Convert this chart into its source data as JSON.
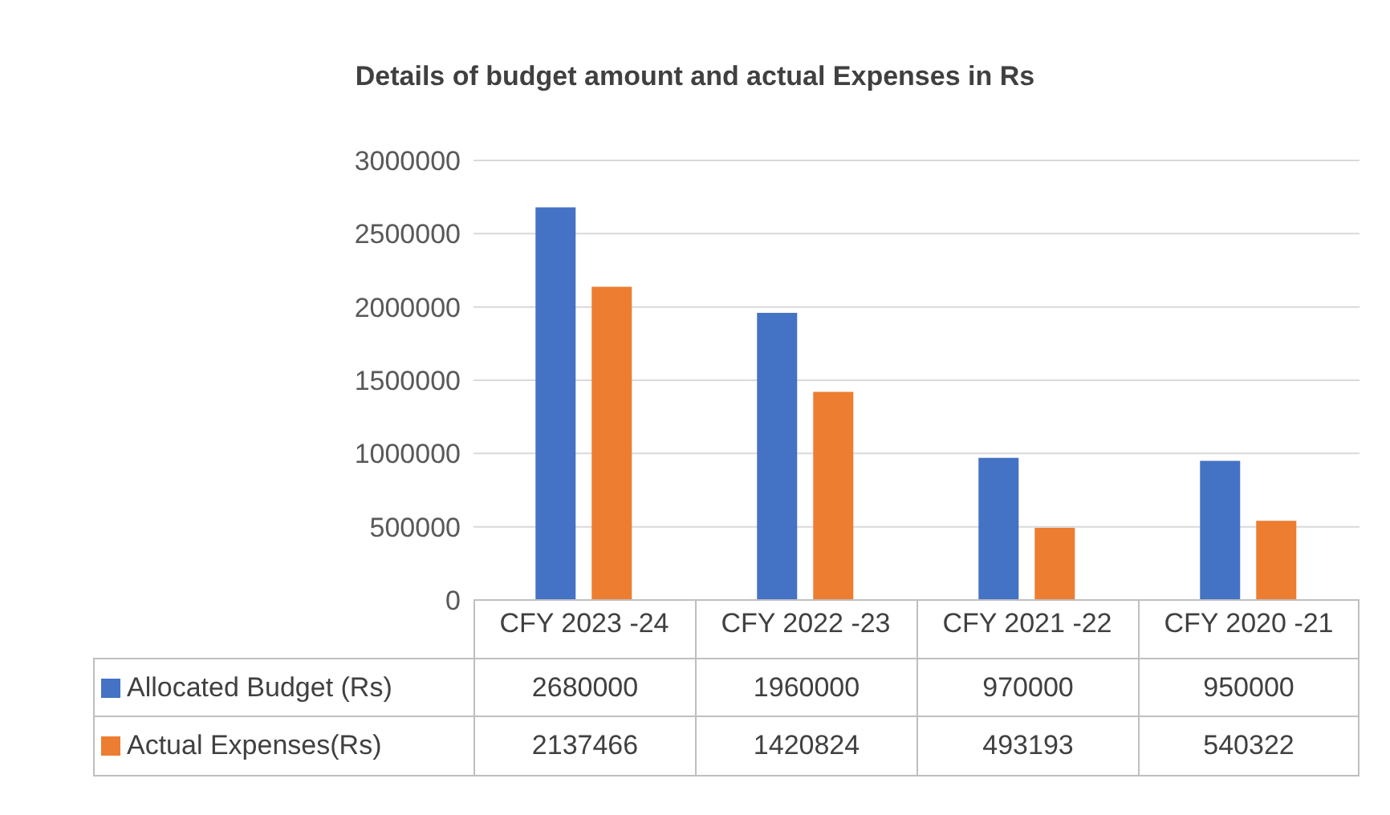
{
  "chart_data": {
    "type": "bar",
    "title": "Details of budget amount and actual Expenses in Rs",
    "categories": [
      "CFY 2023 -24",
      "CFY 2022 -23",
      "CFY 2021 -22",
      "CFY 2020 -21"
    ],
    "series": [
      {
        "name": "Allocated Budget (Rs)",
        "color": "#4472c4",
        "values": [
          2680000,
          1960000,
          970000,
          950000
        ]
      },
      {
        "name": "Actual Expenses(Rs)",
        "color": "#ed7d31",
        "values": [
          2137466,
          1420824,
          493193,
          540322
        ]
      }
    ],
    "ylim": [
      0,
      3000000
    ],
    "yticks": [
      0,
      500000,
      1000000,
      1500000,
      2000000,
      2500000,
      3000000
    ],
    "grid": "y",
    "legend": "bottom",
    "data_labels": true
  }
}
